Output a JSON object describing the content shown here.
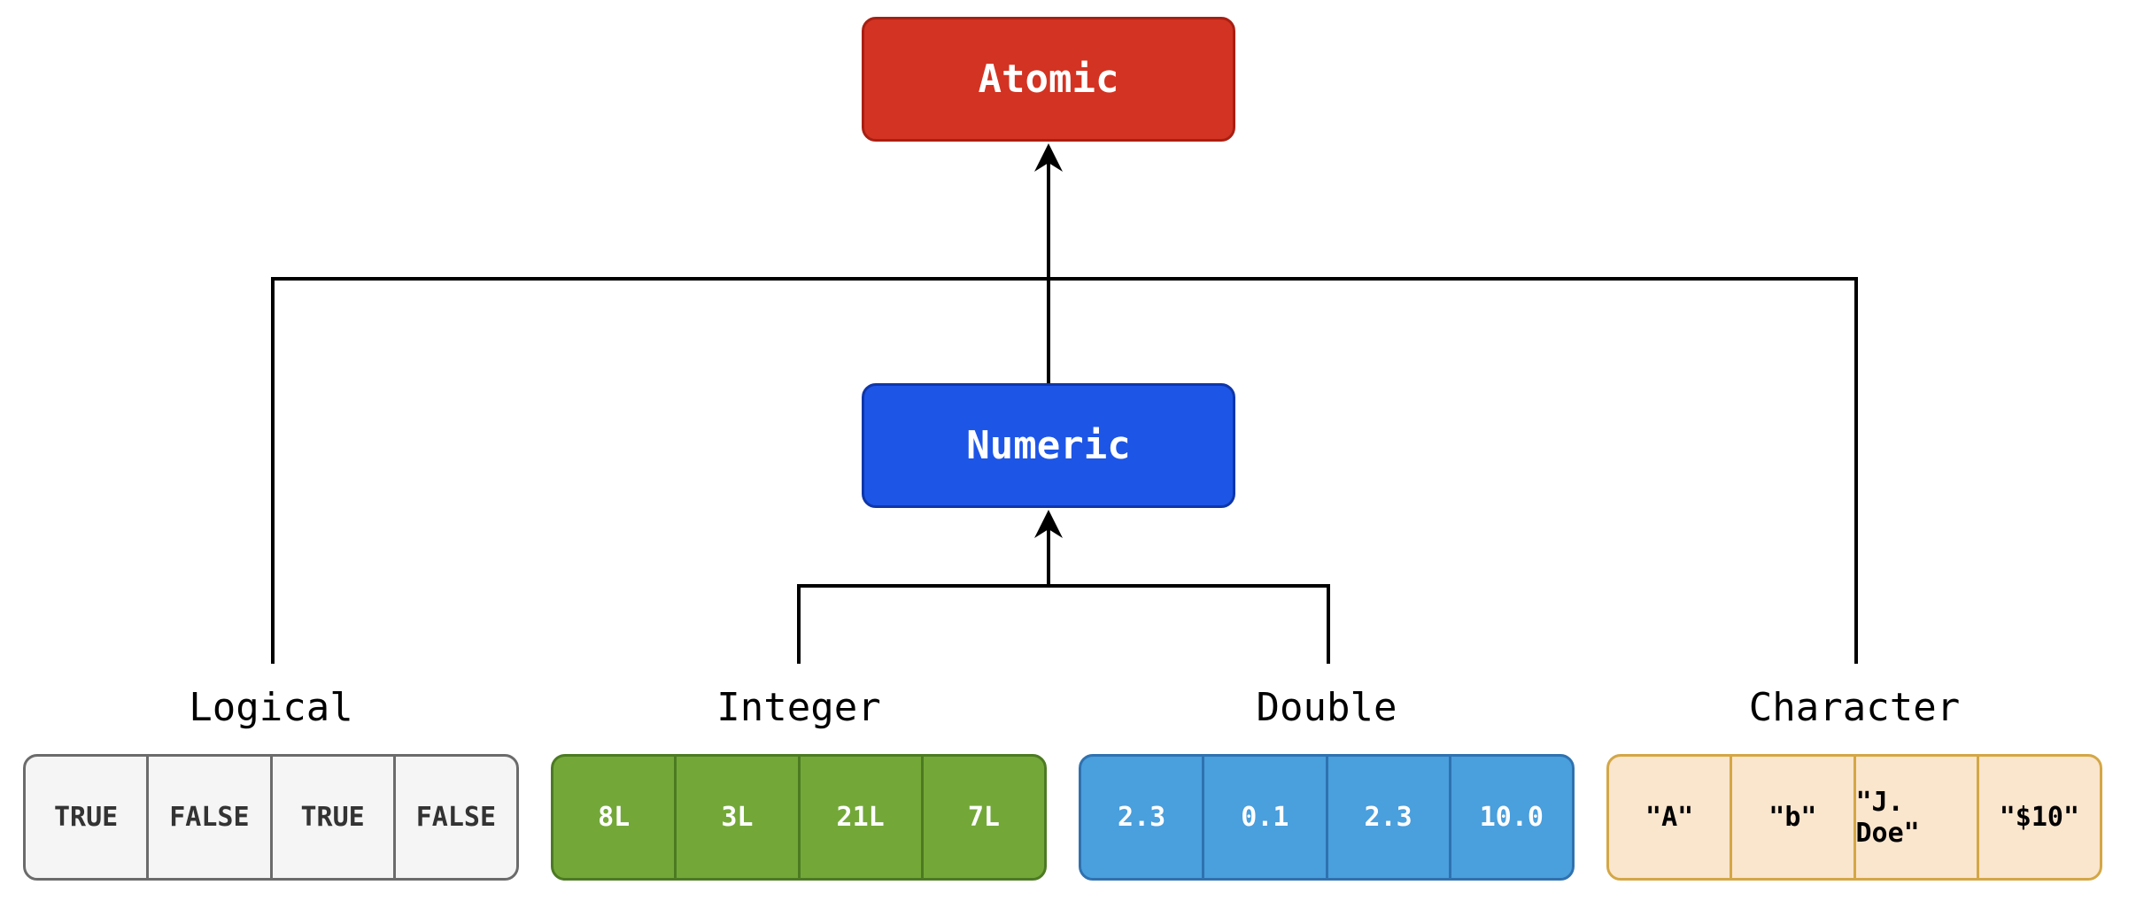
{
  "nodes": {
    "atomic": {
      "label": "Atomic",
      "color": "#d33322"
    },
    "numeric": {
      "label": "Numeric",
      "color": "#1d55e6"
    }
  },
  "groups": {
    "logical": {
      "label": "Logical",
      "color": "#f5f5f5",
      "values": [
        "TRUE",
        "FALSE",
        "TRUE",
        "FALSE"
      ]
    },
    "integer": {
      "label": "Integer",
      "color": "#73a839",
      "values": [
        "8L",
        "3L",
        "21L",
        "7L"
      ]
    },
    "double": {
      "label": "Double",
      "color": "#4a9fdd",
      "values": [
        "2.3",
        "0.1",
        "2.3",
        "10.0"
      ]
    },
    "character": {
      "label": "Character",
      "color": "#fae5cd",
      "values": [
        "\"A\"",
        "\"b\"",
        "\"J. Doe\"",
        "\"$10\""
      ]
    }
  }
}
